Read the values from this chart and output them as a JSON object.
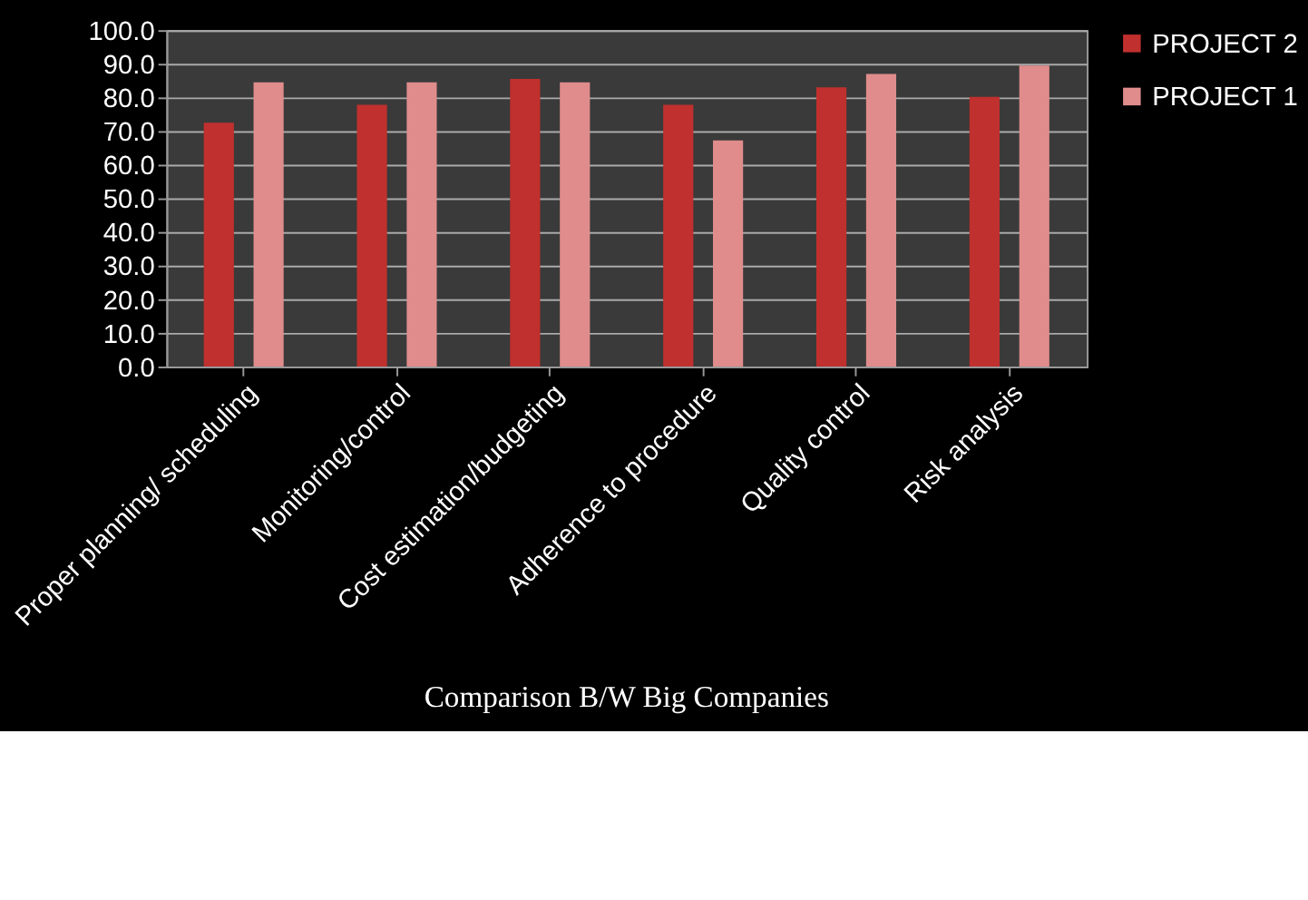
{
  "chart_data": {
    "type": "bar",
    "title": "Comparison B/W Big Companies",
    "categories": [
      "Proper planning/ scheduling",
      "Monitoring/control",
      "Cost estimation/budgeting",
      "Adherence to procedure",
      "Quality control",
      "Risk analysis"
    ],
    "series": [
      {
        "name": "PROJECT 2",
        "color": "#c0302e",
        "values": [
          72.5,
          77.8,
          85.5,
          77.8,
          83.0,
          80.2
        ]
      },
      {
        "name": "PROJECT 1",
        "color": "#e08c8c",
        "values": [
          84.5,
          84.5,
          84.5,
          67.2,
          87.0,
          89.5
        ]
      }
    ],
    "ylim": [
      0,
      100
    ],
    "yticks": [
      {
        "value": 0,
        "label": "0.0"
      },
      {
        "value": 10,
        "label": "10.0"
      },
      {
        "value": 20,
        "label": "20.0"
      },
      {
        "value": 30,
        "label": "30.0"
      },
      {
        "value": 40,
        "label": "40.0"
      },
      {
        "value": 50,
        "label": "50.0"
      },
      {
        "value": 60,
        "label": "60.0"
      },
      {
        "value": 70,
        "label": "70.0"
      },
      {
        "value": 80,
        "label": "80.0"
      },
      {
        "value": 90,
        "label": "90.0"
      },
      {
        "value": 100,
        "label": "100.0"
      }
    ],
    "grid": "y",
    "legend": "right"
  }
}
